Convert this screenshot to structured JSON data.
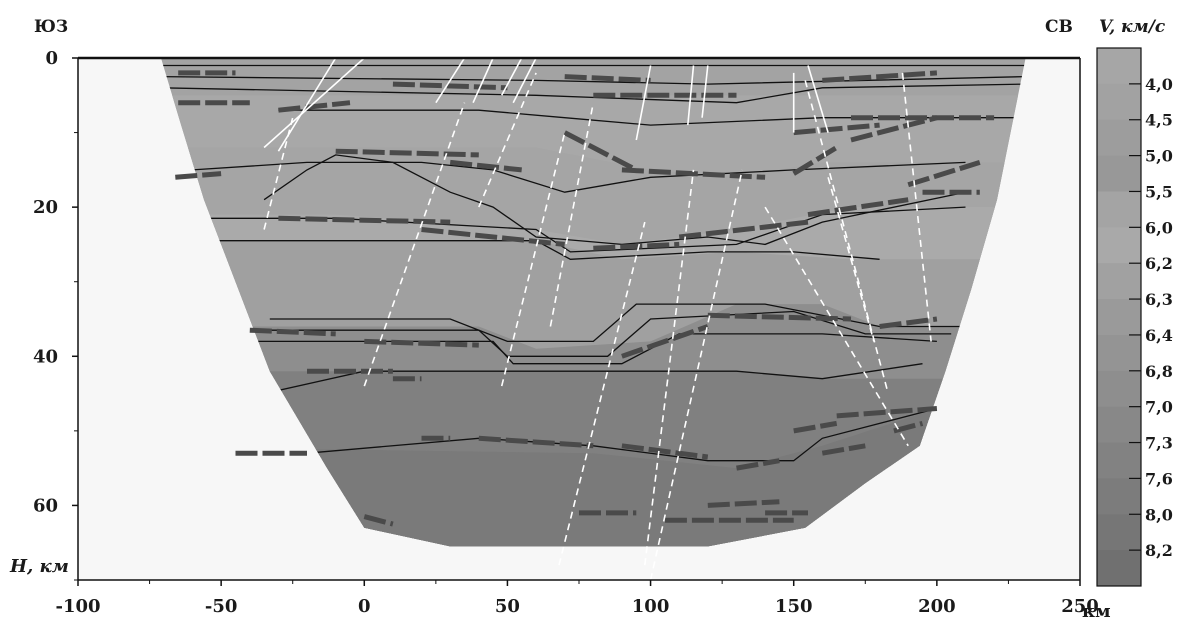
{
  "chart_data": {
    "type": "velocity-depth-cross-section",
    "corner_labels": {
      "left": "ЮЗ",
      "right": "СВ"
    },
    "x_axis": {
      "unit_label": "км",
      "range": [
        -100,
        250
      ],
      "ticks": [
        -100,
        -50,
        0,
        50,
        100,
        150,
        200,
        250
      ],
      "tick_labels": [
        "-100",
        "-50",
        "0",
        "50",
        "100",
        "150",
        "200",
        "250"
      ]
    },
    "y_axis": {
      "label": "H, км",
      "range": [
        0,
        70
      ],
      "ticks": [
        0,
        20,
        40,
        60
      ],
      "tick_labels": [
        "0",
        "20",
        "40",
        "60"
      ]
    },
    "legend": {
      "title": "V, км/с",
      "values": [
        "4,0",
        "4,5",
        "5,0",
        "5,5",
        "6,0",
        "6,2",
        "6,3",
        "6,4",
        "6,8",
        "7,0",
        "7,3",
        "7,6",
        "8,0",
        "8,2"
      ]
    },
    "section_outline": [
      [
        -71,
        0
      ],
      [
        231,
        0
      ],
      [
        221,
        19
      ],
      [
        212,
        31
      ],
      [
        203,
        42
      ],
      [
        194,
        52
      ],
      [
        175,
        57
      ],
      [
        154,
        63
      ],
      [
        120,
        65.5
      ],
      [
        80,
        65.5
      ],
      [
        30,
        65.5
      ],
      [
        0,
        63
      ],
      [
        -13,
        55
      ],
      [
        -33,
        42
      ],
      [
        -45,
        30
      ],
      [
        -56,
        19
      ],
      [
        -64,
        9
      ]
    ],
    "velocity_layers": [
      {
        "v": "4,0",
        "color": "#a3a3a3",
        "top": [
          [
            -71,
            0
          ],
          [
            231,
            0
          ]
        ]
      },
      {
        "v": "5,5",
        "color": "#a8a8a8",
        "top": [
          [
            -71,
            5
          ],
          [
            231,
            5
          ]
        ]
      },
      {
        "v": "6,0",
        "color": "#a5a5a5",
        "top": [
          [
            -100,
            12
          ],
          [
            -20,
            12
          ],
          [
            60,
            12
          ],
          [
            100,
            15
          ],
          [
            130,
            16
          ],
          [
            160,
            14
          ],
          [
            250,
            14
          ]
        ]
      },
      {
        "v": "6,2",
        "color": "#aaaaaa",
        "top": [
          [
            -100,
            21
          ],
          [
            -10,
            21
          ],
          [
            60,
            23
          ],
          [
            90,
            25
          ],
          [
            130,
            23
          ],
          [
            170,
            20
          ],
          [
            250,
            20
          ]
        ]
      },
      {
        "v": "6,3",
        "color": "#a0a0a0",
        "top": [
          [
            -100,
            24.5
          ],
          [
            60,
            24.5
          ],
          [
            90,
            27
          ],
          [
            130,
            26
          ],
          [
            170,
            27
          ],
          [
            250,
            27
          ]
        ]
      },
      {
        "v": "7,0",
        "color": "#8e8e8e",
        "top": [
          [
            -100,
            36
          ],
          [
            40,
            36
          ],
          [
            60,
            39
          ],
          [
            100,
            38
          ],
          [
            130,
            33
          ],
          [
            160,
            33
          ],
          [
            180,
            36
          ],
          [
            250,
            36
          ]
        ]
      },
      {
        "v": "7,6",
        "color": "#808080",
        "top": [
          [
            -100,
            42
          ],
          [
            50,
            42
          ],
          [
            90,
            42
          ],
          [
            130,
            42
          ],
          [
            160,
            43
          ],
          [
            250,
            43
          ]
        ]
      },
      {
        "v": "8,0",
        "color": "#7a7a7a",
        "top": [
          [
            -100,
            52
          ],
          [
            80,
            53
          ],
          [
            130,
            55
          ],
          [
            160,
            52
          ],
          [
            200,
            47
          ],
          [
            250,
            47
          ]
        ]
      }
    ],
    "boundaries": [
      [
        [
          -71,
          1
        ],
        [
          231,
          1
        ]
      ],
      [
        [
          -71,
          2.5
        ],
        [
          60,
          3
        ],
        [
          120,
          3.5
        ],
        [
          231,
          2.5
        ]
      ],
      [
        [
          -71,
          4
        ],
        [
          60,
          5
        ],
        [
          130,
          6
        ],
        [
          160,
          4
        ],
        [
          231,
          3.5
        ]
      ],
      [
        [
          -30,
          7
        ],
        [
          40,
          7
        ],
        [
          70,
          8
        ],
        [
          100,
          9
        ],
        [
          160,
          8
        ],
        [
          231,
          8
        ]
      ],
      [
        [
          -60,
          15
        ],
        [
          -20,
          14
        ],
        [
          20,
          14
        ],
        [
          45,
          15
        ],
        [
          70,
          18
        ],
        [
          100,
          16
        ],
        [
          150,
          15
        ],
        [
          210,
          14
        ]
      ],
      [
        [
          -35,
          19
        ],
        [
          -20,
          15
        ],
        [
          -10,
          13
        ],
        [
          10,
          14
        ],
        [
          30,
          18
        ],
        [
          45,
          20
        ],
        [
          60,
          24
        ],
        [
          90,
          25
        ],
        [
          120,
          24
        ],
        [
          140,
          25
        ],
        [
          160,
          22
        ],
        [
          210,
          18
        ]
      ],
      [
        [
          -66,
          21.5
        ],
        [
          -10,
          21.5
        ],
        [
          60,
          23
        ],
        [
          72,
          26
        ],
        [
          130,
          25
        ],
        [
          160,
          21
        ],
        [
          210,
          20
        ]
      ],
      [
        [
          -55,
          24.5
        ],
        [
          60,
          24.5
        ],
        [
          72,
          27
        ],
        [
          120,
          26
        ],
        [
          150,
          26
        ],
        [
          180,
          27
        ]
      ],
      [
        [
          -33,
          35
        ],
        [
          30,
          35
        ],
        [
          50,
          38
        ],
        [
          80,
          38
        ],
        [
          95,
          33
        ],
        [
          140,
          33
        ],
        [
          180,
          36
        ],
        [
          210,
          36
        ]
      ],
      [
        [
          -40,
          36.5
        ],
        [
          40,
          36.5
        ],
        [
          50,
          40
        ],
        [
          85,
          40
        ],
        [
          100,
          35
        ],
        [
          150,
          34
        ],
        [
          175,
          37
        ],
        [
          205,
          37
        ]
      ],
      [
        [
          -45,
          38
        ],
        [
          45,
          38
        ],
        [
          52,
          41
        ],
        [
          90,
          41
        ],
        [
          110,
          37
        ],
        [
          160,
          37
        ],
        [
          200,
          38
        ]
      ],
      [
        [
          -35,
          45
        ],
        [
          0,
          42
        ],
        [
          50,
          42
        ],
        [
          90,
          42
        ],
        [
          130,
          42
        ],
        [
          160,
          43
        ],
        [
          195,
          41
        ]
      ],
      [
        [
          -20,
          53
        ],
        [
          40,
          51
        ],
        [
          80,
          52
        ],
        [
          120,
          54
        ],
        [
          150,
          54
        ],
        [
          160,
          51
        ],
        [
          200,
          47
        ]
      ]
    ],
    "dashed_reflectors": [
      [
        [
          -66,
          16
        ],
        [
          -50,
          15.5
        ]
      ],
      [
        [
          -65,
          2
        ],
        [
          -45,
          2
        ]
      ],
      [
        [
          -65,
          6
        ],
        [
          -40,
          6
        ]
      ],
      [
        [
          -30,
          7
        ],
        [
          -5,
          6
        ]
      ],
      [
        [
          -10,
          12.5
        ],
        [
          40,
          13
        ]
      ],
      [
        [
          30,
          14
        ],
        [
          55,
          15
        ]
      ],
      [
        [
          10,
          3.5
        ],
        [
          50,
          4
        ]
      ],
      [
        [
          70,
          2.5
        ],
        [
          100,
          3
        ]
      ],
      [
        [
          80,
          5
        ],
        [
          130,
          5
        ]
      ],
      [
        [
          160,
          3
        ],
        [
          200,
          2
        ]
      ],
      [
        [
          170,
          8
        ],
        [
          220,
          8
        ]
      ],
      [
        [
          150,
          10
        ],
        [
          180,
          9
        ]
      ],
      [
        [
          70,
          10
        ],
        [
          95,
          15
        ]
      ],
      [
        [
          90,
          15
        ],
        [
          140,
          16
        ]
      ],
      [
        [
          150,
          15.5
        ],
        [
          165,
          12
        ]
      ],
      [
        [
          170,
          11
        ],
        [
          200,
          8
        ]
      ],
      [
        [
          190,
          17
        ],
        [
          215,
          14
        ]
      ],
      [
        [
          -30,
          21.5
        ],
        [
          30,
          22
        ]
      ],
      [
        [
          20,
          23
        ],
        [
          70,
          25
        ]
      ],
      [
        [
          80,
          25.5
        ],
        [
          110,
          25
        ]
      ],
      [
        [
          110,
          24
        ],
        [
          155,
          22
        ]
      ],
      [
        [
          155,
          21
        ],
        [
          190,
          19
        ]
      ],
      [
        [
          195,
          18
        ],
        [
          215,
          18
        ]
      ],
      [
        [
          -40,
          36.5
        ],
        [
          -10,
          37
        ]
      ],
      [
        [
          0,
          38
        ],
        [
          40,
          38.5
        ]
      ],
      [
        [
          90,
          40
        ],
        [
          120,
          36
        ]
      ],
      [
        [
          120,
          34.5
        ],
        [
          170,
          35
        ]
      ],
      [
        [
          180,
          36
        ],
        [
          200,
          35
        ]
      ],
      [
        [
          -20,
          42
        ],
        [
          10,
          42
        ]
      ],
      [
        [
          10,
          43
        ],
        [
          20,
          43
        ]
      ],
      [
        [
          20,
          51
        ],
        [
          30,
          51
        ]
      ],
      [
        [
          40,
          51
        ],
        [
          80,
          52
        ]
      ],
      [
        [
          90,
          52
        ],
        [
          120,
          53.5
        ]
      ],
      [
        [
          130,
          55
        ],
        [
          145,
          54
        ]
      ],
      [
        [
          150,
          50
        ],
        [
          165,
          49
        ]
      ],
      [
        [
          165,
          48
        ],
        [
          200,
          47
        ]
      ],
      [
        [
          160,
          53
        ],
        [
          175,
          52
        ]
      ],
      [
        [
          185,
          50
        ],
        [
          195,
          49
        ]
      ],
      [
        [
          -45,
          53
        ],
        [
          -20,
          53
        ]
      ],
      [
        [
          0,
          61.5
        ],
        [
          10,
          62.5
        ]
      ],
      [
        [
          75,
          61
        ],
        [
          95,
          61
        ]
      ],
      [
        [
          105,
          62
        ],
        [
          150,
          62
        ]
      ],
      [
        [
          120,
          60
        ],
        [
          145,
          59.5
        ]
      ],
      [
        [
          140,
          61
        ],
        [
          155,
          61
        ]
      ]
    ],
    "white_faults": [
      [
        [
          -35,
          12
        ],
        [
          0,
          0
        ]
      ],
      [
        [
          -30,
          12.5
        ],
        [
          -10,
          0
        ]
      ],
      [
        [
          25,
          6
        ],
        [
          35,
          0
        ]
      ],
      [
        [
          38,
          6
        ],
        [
          45,
          0
        ]
      ],
      [
        [
          48,
          5
        ],
        [
          55,
          0
        ]
      ],
      [
        [
          52,
          6
        ],
        [
          60,
          0
        ]
      ],
      [
        [
          95,
          11
        ],
        [
          100,
          1
        ]
      ],
      [
        [
          113,
          9
        ],
        [
          115,
          1
        ]
      ],
      [
        [
          118,
          8
        ],
        [
          120,
          1
        ]
      ],
      [
        [
          150,
          10
        ],
        [
          150,
          2
        ]
      ],
      [
        [
          162,
          10
        ],
        [
          155,
          1
        ]
      ]
    ],
    "dashed_faults": [
      [
        [
          -35,
          23
        ],
        [
          -25,
          8
        ]
      ],
      [
        [
          0,
          44
        ],
        [
          35,
          6
        ]
      ],
      [
        [
          48,
          44
        ],
        [
          70,
          10
        ]
      ],
      [
        [
          65,
          36
        ],
        [
          80,
          6
        ]
      ],
      [
        [
          68,
          68
        ],
        [
          98,
          22
        ]
      ],
      [
        [
          98,
          68
        ],
        [
          115,
          15
        ]
      ],
      [
        [
          100,
          70
        ],
        [
          132,
          15
        ]
      ],
      [
        [
          40,
          20
        ],
        [
          60,
          2
        ]
      ],
      [
        [
          140,
          20
        ],
        [
          190,
          52
        ]
      ],
      [
        [
          162,
          16
        ],
        [
          178,
          38
        ]
      ],
      [
        [
          154,
          3
        ],
        [
          183,
          45
        ]
      ],
      [
        [
          188,
          2
        ],
        [
          198,
          38
        ]
      ]
    ]
  }
}
